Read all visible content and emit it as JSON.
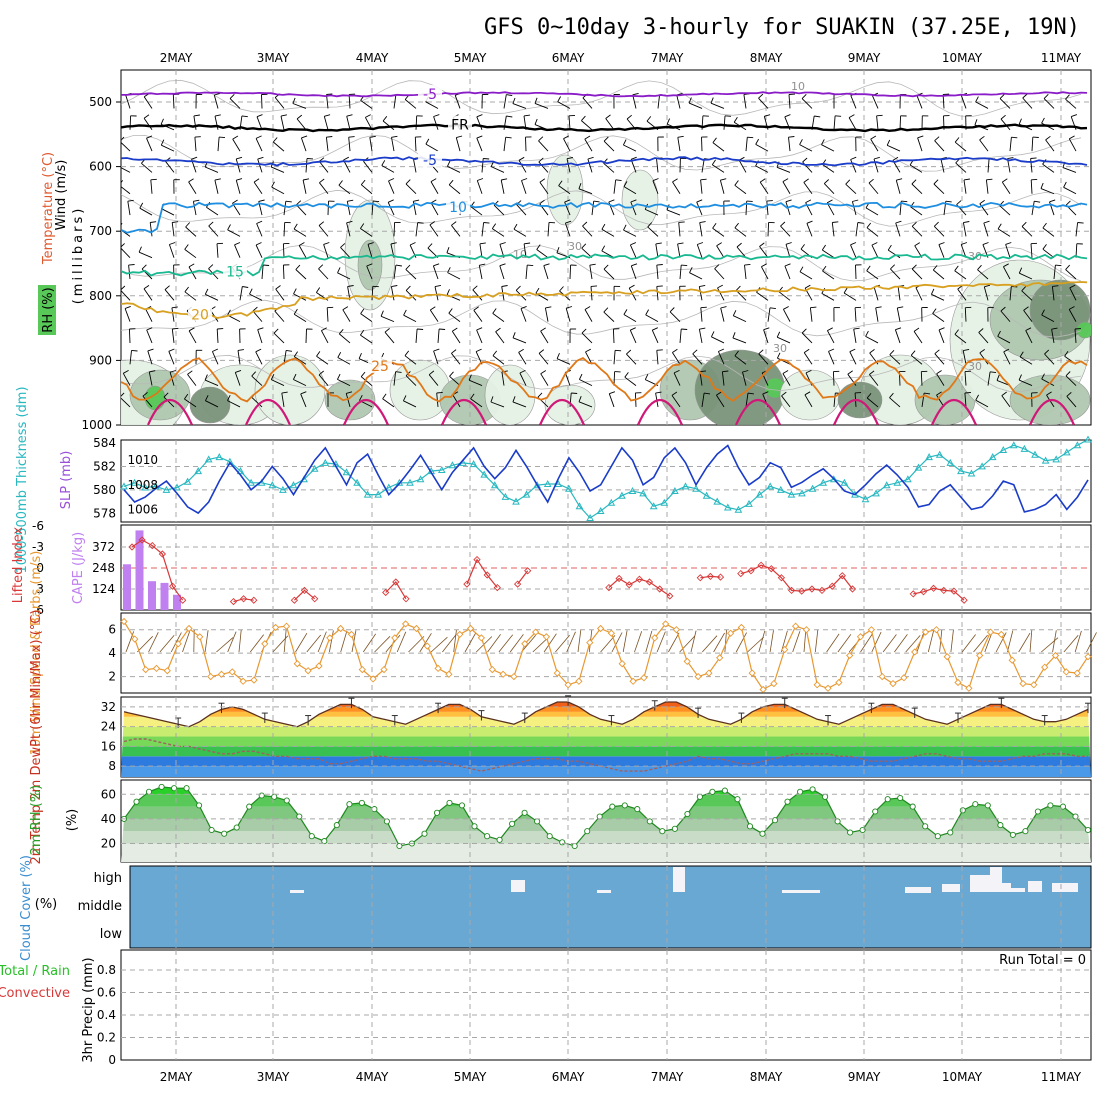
{
  "chart_data": {
    "type": "meteogram",
    "title": "GFS 0~10day 3-hourly for SUAKIN (37.25E, 19N)",
    "date_labels": [
      "2MAY",
      "3MAY",
      "4MAY",
      "5MAY",
      "6MAY",
      "7MAY",
      "8MAY",
      "9MAY",
      "10MAY",
      "11MAY"
    ],
    "colors": {
      "purple": "#8a1cc8",
      "black": "#000000",
      "blue": "#1a3cc8",
      "lightblue": "#1e8ee0",
      "teal": "#18b890",
      "gold": "#d8a020",
      "orange": "#e07818",
      "magenta": "#d01878",
      "rh_light": "#e6f2e6",
      "rh_mid": "#b0c8b0",
      "rh_dark": "#7a947a",
      "rh_bright": "#58c858",
      "cloud_bg": "#6aa8d4",
      "slp": "#1a3cc8",
      "thick": "#28b8c0",
      "cape": "#c080f0",
      "li": "#d83838",
      "wind": "#e89830",
      "barb": "#7a5020",
      "rh2m": "#28c028",
      "rh2m_line": "#208820"
    },
    "upper_air": {
      "ylabel_wind": "Wind (m/s)",
      "ylabel_temp": "Temperature (°C)",
      "ylabel_rh": "RH (%)",
      "ylabel_unit": "(millibars)",
      "y_ticks": [
        "500",
        "600",
        "700",
        "800",
        "900",
        "1000"
      ],
      "contours": [
        {
          "label": "-5",
          "color_key": "purple",
          "base_mb": 488,
          "amp": 4
        },
        {
          "label": "FR",
          "color_key": "black",
          "base_mb": 540,
          "amp": 6
        },
        {
          "label": "-5",
          "color_key": "blue",
          "base_mb": 592,
          "amp": 8
        },
        {
          "label": "10",
          "color_key": "lightblue",
          "base_mb": 660,
          "amp": 12
        },
        {
          "label": "15",
          "color_key": "teal",
          "base_mb": 740,
          "amp": 14
        },
        {
          "label": "20",
          "color_key": "gold",
          "base_mb": 810,
          "amp": 14
        },
        {
          "label": "25",
          "color_key": "orange",
          "base_mb": 930,
          "amp": 40
        }
      ],
      "rh_labels": [
        "10",
        "30",
        "10",
        "30",
        "30",
        "30"
      ]
    },
    "slp_thickness": {
      "ylabel_thick": "1000-500mb Thickness (dm)",
      "ylabel_slp": "SLP (mb)",
      "left_ticks": [
        "584",
        "582",
        "580",
        "578"
      ],
      "right_ticks": [
        "1010",
        "1008",
        "1006"
      ],
      "slp_mb": [
        1007.6,
        1006.6,
        1007.0,
        1007.7,
        1008.3,
        1007.3,
        1006.2,
        1005.7,
        1006.6,
        1008.3,
        1009.8,
        1008.8,
        1007.6,
        1008.3,
        1009.5,
        1008.5,
        1007.2,
        1008.6,
        1010.0,
        1011.0,
        1009.5,
        1008.0,
        1009.8,
        1010.5,
        1008.8,
        1007.2,
        1008.1,
        1009.2,
        1010.4,
        1009.0,
        1007.6,
        1009.0,
        1010.0,
        1011.0,
        1009.5,
        1008.5,
        1009.4,
        1010.8,
        1009.5,
        1008.0,
        1006.6,
        1008.5,
        1010.2,
        1009.0,
        1007.5,
        1008.0,
        1009.5,
        1011.0,
        1010.0,
        1008.0,
        1008.6,
        1010.2,
        1011.0,
        1009.8,
        1008.0,
        1009.4,
        1010.5,
        1011.2,
        1009.4,
        1008.0,
        1008.6,
        1009.8,
        1009.4,
        1007.8,
        1008.2,
        1008.8,
        1009.3,
        1008.5,
        1007.5,
        1007.2,
        1008.0,
        1008.9,
        1009.6,
        1008.8,
        1007.8,
        1006.2,
        1006.4,
        1007.5,
        1008.0,
        1007.0,
        1006.0,
        1006.2,
        1007.1,
        1008.3,
        1008.0,
        1005.8,
        1006.0,
        1006.4,
        1007.2,
        1006.0,
        1007.0,
        1008.4
      ],
      "thickness_dm": [
        580.3,
        580.6,
        580.2,
        580.3,
        580.0,
        580.2,
        580.7,
        581.6,
        582.6,
        582.8,
        582.4,
        581.6,
        580.6,
        580.6,
        580.4,
        580.0,
        580.4,
        580.9,
        581.8,
        582.3,
        582.2,
        581.5,
        580.6,
        579.6,
        579.6,
        580.2,
        580.6,
        580.6,
        580.9,
        581.6,
        581.7,
        582.1,
        582.3,
        582.2,
        581.3,
        580.4,
        579.4,
        579.0,
        579.6,
        580.4,
        580.5,
        580.5,
        580.1,
        578.6,
        577.6,
        578.2,
        578.9,
        579.5,
        579.9,
        579.7,
        578.6,
        578.9,
        579.9,
        580.3,
        580.1,
        579.5,
        579.0,
        578.5,
        578.3,
        578.8,
        579.6,
        580.3,
        580.0,
        579.6,
        579.7,
        580.1,
        580.6,
        580.9,
        580.6,
        579.6,
        579.2,
        579.7,
        580.4,
        580.6,
        580.9,
        581.9,
        582.8,
        583.0,
        582.3,
        581.6,
        581.4,
        582.0,
        582.8,
        583.4,
        583.8,
        583.5,
        583.0,
        582.5,
        582.6,
        583.2,
        583.8,
        584.3
      ]
    },
    "cape_li": {
      "ylabel_li": "Lifted Index",
      "ylabel_cape": "CAPE (J/kg)",
      "li_ticks": [
        "-6",
        "-3",
        "0",
        "3",
        "6"
      ],
      "cape_ticks": [
        "372",
        "248",
        "124"
      ],
      "cape_bars": [
        270,
        470,
        170,
        160,
        90
      ],
      "lifted_index": [
        -3.0,
        -4.0,
        -3.2,
        -2.0,
        2.6,
        4.6,
        null,
        null,
        null,
        null,
        4.8,
        4.4,
        4.6,
        null,
        null,
        null,
        4.6,
        3.2,
        4.4,
        null,
        null,
        null,
        null,
        null,
        null,
        3.5,
        2.0,
        4.4,
        null,
        null,
        null,
        null,
        null,
        2.3,
        -1.2,
        1.0,
        2.8,
        null,
        2.3,
        0.4,
        null,
        null,
        null,
        null,
        null,
        null,
        null,
        2.8,
        1.5,
        2.4,
        1.6,
        2.0,
        3.0,
        4.0,
        null,
        null,
        1.4,
        1.2,
        1.3,
        null,
        0.8,
        0.4,
        -0.4,
        0.1,
        1.4,
        3.2,
        3.3,
        3.0,
        3.2,
        2.6,
        1.1,
        3.0,
        null,
        null,
        null,
        null,
        null,
        3.7,
        3.4,
        2.9,
        3.2,
        3.3,
        4.6,
        null,
        null,
        null,
        null,
        null,
        null,
        null,
        null,
        null
      ]
    },
    "wind10m": {
      "ylabel": "10m Wind Speed & Barbs (m/s)",
      "ticks": [
        "6",
        "4",
        "2"
      ],
      "speed_ms": [
        6.7,
        5.2,
        2.6,
        2.7,
        2.5,
        4.8,
        6.1,
        5.4,
        2.0,
        2.2,
        2.4,
        1.6,
        1.7,
        4.8,
        6.2,
        6.3,
        3.1,
        2.5,
        2.9,
        5.3,
        6.1,
        5.6,
        2.6,
        1.8,
        2.6,
        5.3,
        6.5,
        6.1,
        4.6,
        2.7,
        2.2,
        5.6,
        6.1,
        5.3,
        2.6,
        2.2,
        2.0,
        4.8,
        5.8,
        5.4,
        2.3,
        1.3,
        1.6,
        4.9,
        6.1,
        5.7,
        3.1,
        1.6,
        1.9,
        5.3,
        6.5,
        6.0,
        3.3,
        2.0,
        2.3,
        3.6,
        5.7,
        6.2,
        2.3,
        0.9,
        1.4,
        4.3,
        6.3,
        6.0,
        1.3,
        1.0,
        1.5,
        3.8,
        5.4,
        6.0,
        2.0,
        1.4,
        1.9,
        4.1,
        5.8,
        6.0,
        3.7,
        1.5,
        1.0,
        3.8,
        5.8,
        5.6,
        3.4,
        1.4,
        1.3,
        2.8,
        3.8,
        2.4,
        2.3,
        3.7
      ]
    },
    "temp2m": {
      "ylabel": "2m Temp 2m DewPt (6hr Min/Max) (°C)",
      "ticks": [
        "32",
        "24",
        "16",
        "8"
      ],
      "temp_c": [
        30,
        29,
        28,
        27,
        26,
        25,
        24,
        26,
        29,
        31,
        32,
        31,
        29,
        27,
        26,
        25,
        24,
        26,
        29,
        31,
        33,
        33,
        31,
        28,
        27,
        26,
        25,
        27,
        29,
        31,
        33,
        33,
        31,
        28,
        27,
        26,
        25,
        27,
        30,
        32,
        34,
        34,
        32,
        29,
        27,
        26,
        25,
        27,
        30,
        32,
        34,
        34,
        32,
        29,
        27,
        26,
        25,
        27,
        30,
        32,
        33,
        33,
        31,
        29,
        27,
        26,
        25,
        27,
        29,
        31,
        33,
        33,
        31,
        29,
        27,
        26,
        25,
        27,
        29,
        31,
        33,
        33,
        31,
        29,
        27,
        26,
        26,
        27,
        29,
        31
      ],
      "dewpt_c": [
        18,
        19,
        19,
        18,
        17,
        16,
        16,
        15,
        14,
        13,
        13,
        14,
        14,
        13,
        12,
        12,
        11,
        11,
        11,
        9,
        9,
        10,
        11,
        12,
        12,
        11,
        11,
        11,
        10,
        10,
        9,
        8,
        7,
        6,
        7,
        8,
        9,
        10,
        11,
        11,
        11,
        10,
        10,
        9,
        8,
        7,
        6,
        6,
        6,
        7,
        8,
        9,
        10,
        12,
        11,
        11,
        10,
        9,
        9,
        10,
        11,
        12,
        13,
        13,
        13,
        13,
        12,
        12,
        11,
        10,
        10,
        10,
        11,
        12,
        13,
        13,
        12,
        11,
        11,
        10,
        10,
        10,
        11,
        12,
        12,
        13,
        13,
        13,
        12,
        12
      ]
    },
    "rh2m": {
      "ylabel": "2m RH (%)",
      "ticks": [
        "60",
        "40",
        "20"
      ],
      "rh_pct": [
        40,
        54,
        62,
        66,
        65,
        65,
        51,
        31,
        28,
        33,
        50,
        59,
        58,
        55,
        42,
        26,
        22,
        35,
        52,
        53,
        48,
        38,
        18,
        20,
        28,
        45,
        53,
        51,
        34,
        26,
        23,
        36,
        45,
        38,
        26,
        21,
        18,
        30,
        42,
        50,
        51,
        48,
        38,
        30,
        32,
        44,
        58,
        62,
        63,
        56,
        34,
        28,
        39,
        54,
        62,
        64,
        58,
        38,
        29,
        31,
        46,
        56,
        57,
        50,
        34,
        26,
        29,
        47,
        52,
        51,
        35,
        27,
        30,
        46,
        51,
        50,
        42,
        31
      ],
      "rh_label_ticks": [
        "60",
        "40",
        "20"
      ]
    },
    "cloud": {
      "ylabel": "Cloud Cover (%)",
      "levels": [
        "high",
        "middle",
        "low"
      ]
    },
    "precip": {
      "ylabel_a": "Total / Rain",
      "ylabel_b": "Convective",
      "ylabel_c": "3hr Precip (mm)",
      "ticks": [
        "0.8",
        "0.6",
        "0.4",
        "0.2",
        "0"
      ],
      "run_total": "Run Total = 0"
    }
  }
}
